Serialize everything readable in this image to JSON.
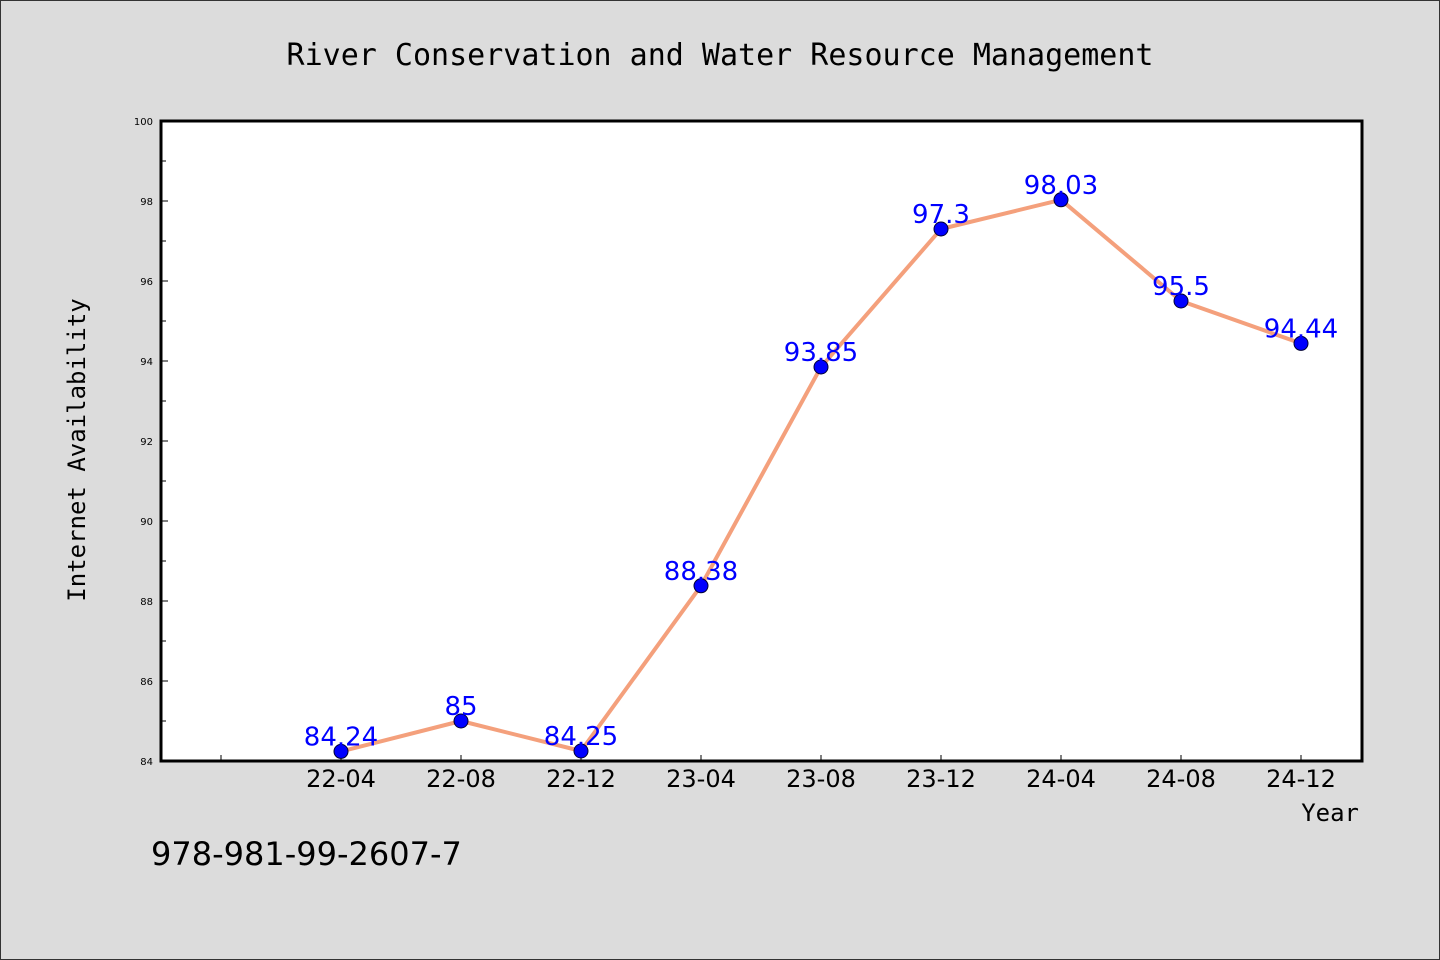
{
  "chart_data": {
    "type": "line",
    "title": "River Conservation and Water Resource Management",
    "xlabel": "Year",
    "ylabel": "Internet Availability",
    "categories": [
      "22-04",
      "22-08",
      "22-12",
      "23-04",
      "23-08",
      "23-12",
      "24-04",
      "24-08",
      "24-12"
    ],
    "series": [
      {
        "values": [
          84.24,
          85,
          84.25,
          88.38,
          93.85,
          97.3,
          98.03,
          95.5,
          94.44
        ],
        "labels": [
          "84.24",
          "85",
          "84.25",
          "88.38",
          "93.85",
          "97.3",
          "98.03",
          "95.5",
          "94.44"
        ]
      }
    ],
    "ylim": [
      84,
      100
    ],
    "yticks": [
      "84",
      "86",
      "88",
      "90",
      "92",
      "94",
      "96",
      "98",
      "100"
    ],
    "grid": false,
    "legend": "none",
    "colors": {
      "line": "#f4a07c",
      "marker": "#0000ff",
      "data_label": "#0000ff",
      "plot_background": "#ffffff",
      "page_background": "#dcdcdc"
    }
  },
  "footnote": "978-981-99-2607-7"
}
